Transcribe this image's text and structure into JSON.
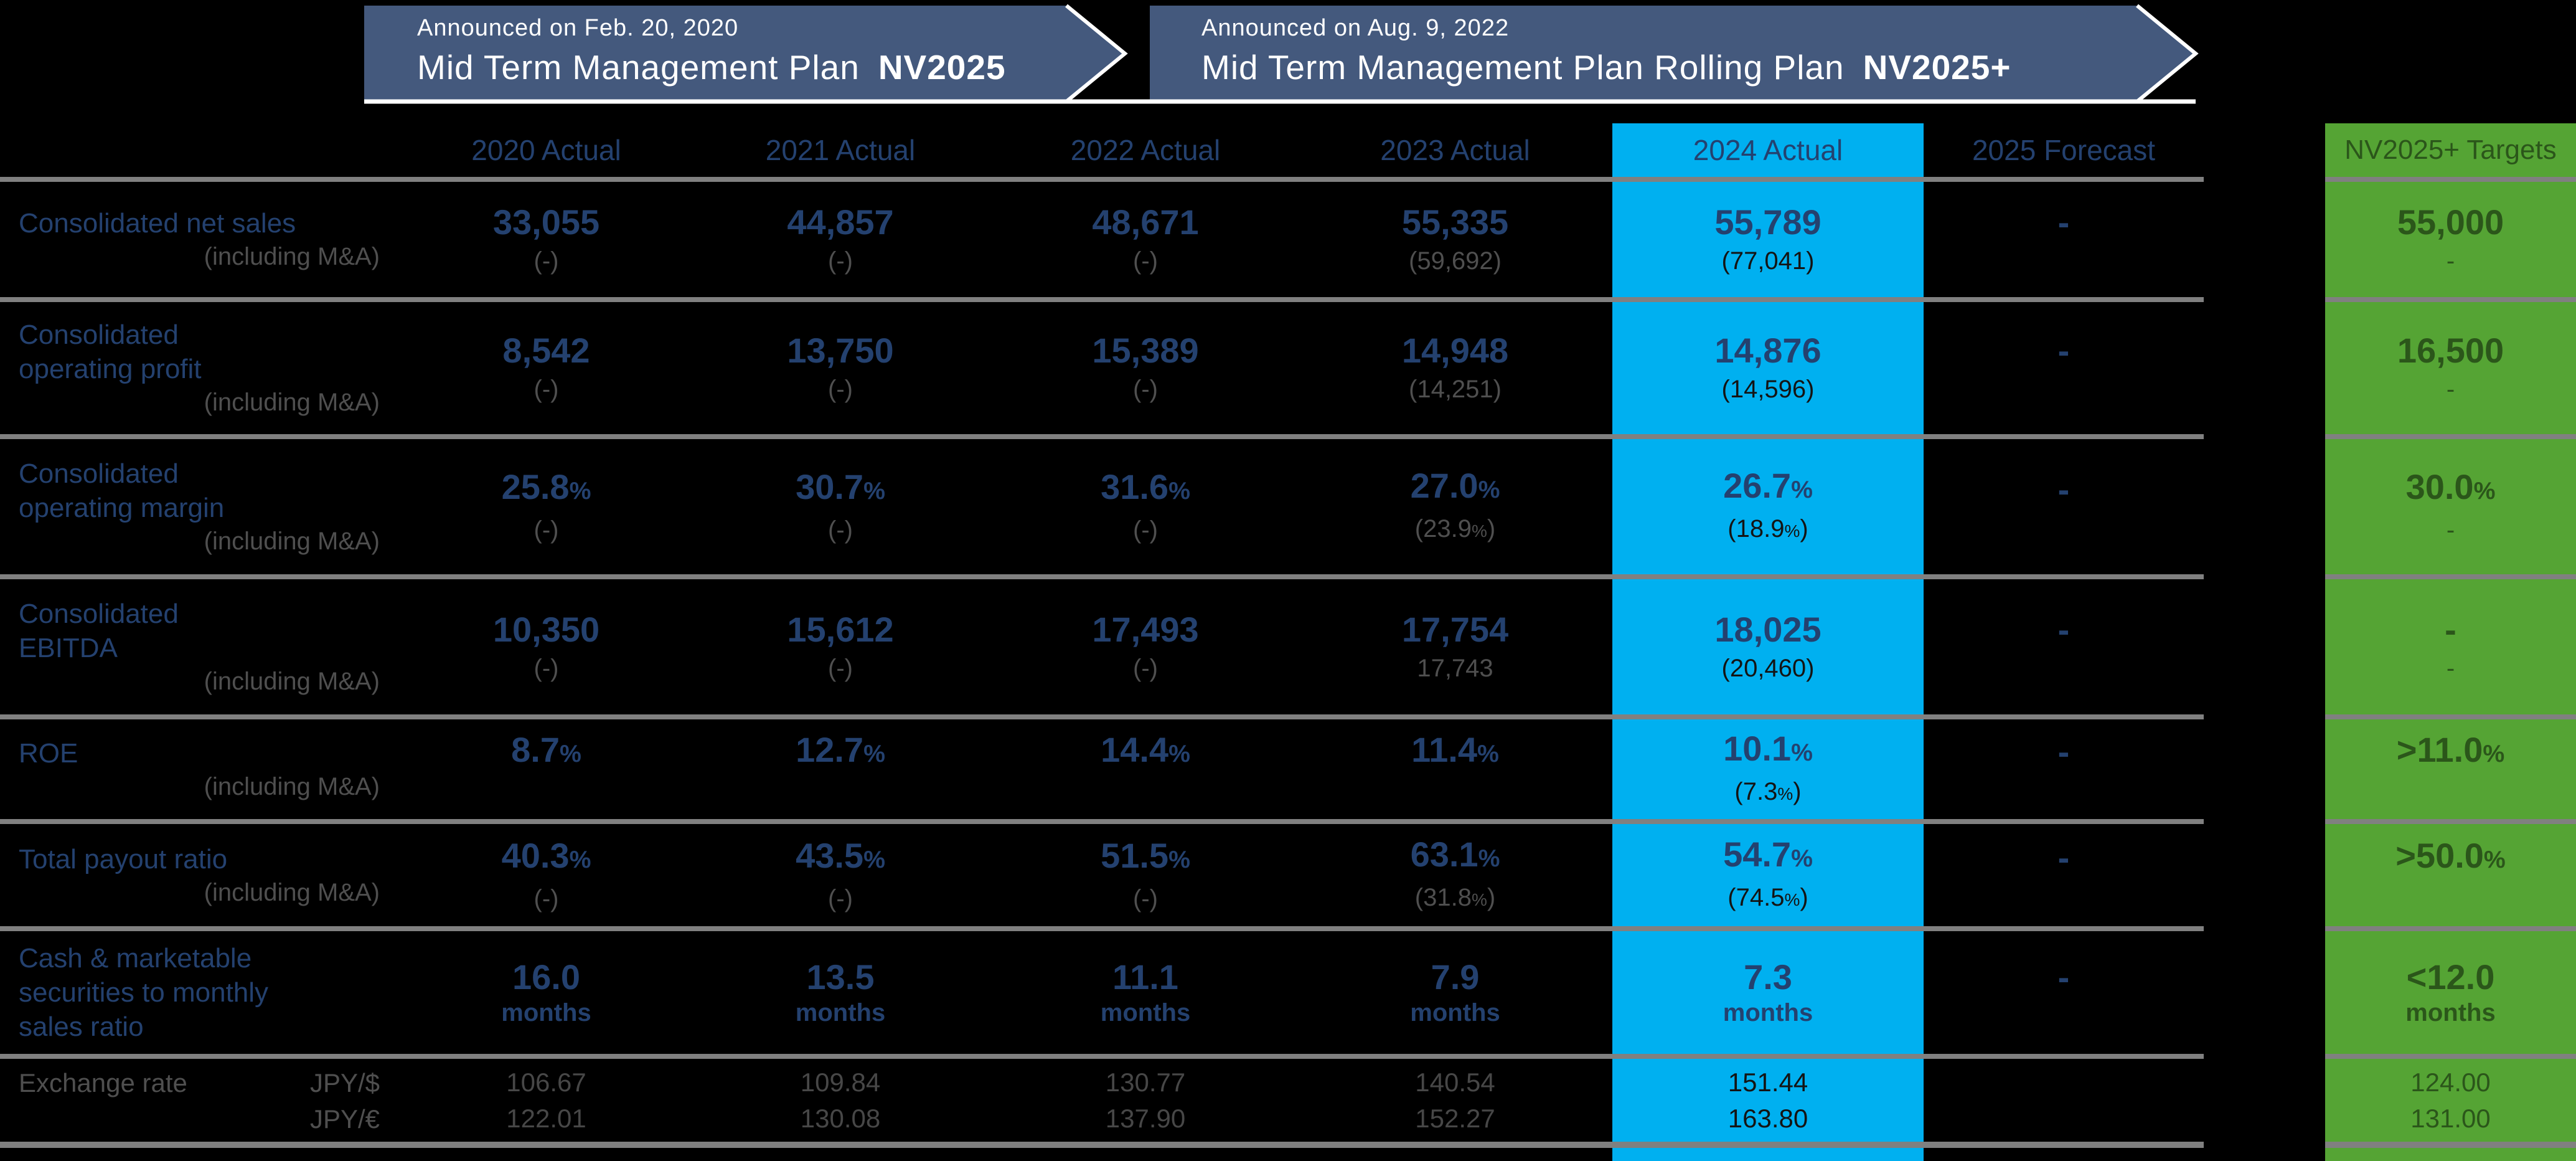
{
  "colors": {
    "background": "#000000",
    "banner_blue": "#44597D",
    "banner_text": "#FFFFFF",
    "navy_text": "#24416F",
    "gray_text": "#4F4F4F",
    "highlight_cyan": "#00B0F0",
    "target_green": "#55A434",
    "target_text_green": "#2B561A",
    "separator_gray": "#808080"
  },
  "banner": {
    "plan1": {
      "announced": "Announced on Feb. 20, 2020",
      "title": "Mid Term Management Plan",
      "code": "NV2025"
    },
    "plan2": {
      "announced": "Announced on Aug. 9, 2022",
      "title": "Mid Term Management Plan Rolling Plan",
      "code": "NV2025+"
    }
  },
  "table": {
    "headers": [
      "2020 Actual",
      "2021 Actual",
      "2022 Actual",
      "2023 Actual",
      "2024 Actual",
      "2025 Forecast"
    ],
    "target_header": "NV2025+ Targets",
    "rows": [
      {
        "label": [
          "Consolidated net sales"
        ],
        "sublabel": "(including M&A)",
        "cells": [
          {
            "v": "33,055",
            "s": "(-)"
          },
          {
            "v": "44,857",
            "s": "(-)"
          },
          {
            "v": "48,671",
            "s": "(-)"
          },
          {
            "v": "55,335",
            "s": "(59,692)"
          },
          {
            "v": "55,789",
            "s": "(77,041)"
          },
          {
            "v": "-",
            "s": ""
          }
        ],
        "target": {
          "v": "55,000",
          "s": "-"
        }
      },
      {
        "label": [
          "Consolidated",
          "operating profit"
        ],
        "sublabel": "(including M&A)",
        "cells": [
          {
            "v": "8,542",
            "s": "(-)"
          },
          {
            "v": "13,750",
            "s": "(-)"
          },
          {
            "v": "15,389",
            "s": "(-)"
          },
          {
            "v": "14,948",
            "s": "(14,251)"
          },
          {
            "v": "14,876",
            "s": "(14,596)"
          },
          {
            "v": "-",
            "s": ""
          }
        ],
        "target": {
          "v": "16,500",
          "s": "-"
        }
      },
      {
        "label": [
          "Consolidated",
          "operating margin"
        ],
        "sublabel": "(including M&A)",
        "cells": [
          {
            "v": "25.8%",
            "s": "(-)"
          },
          {
            "v": "30.7%",
            "s": "(-)"
          },
          {
            "v": "31.6%",
            "s": "(-)"
          },
          {
            "v": "27.0%",
            "s": "(23.9%)"
          },
          {
            "v": "26.7%",
            "s": "(18.9%)"
          },
          {
            "v": "-",
            "s": ""
          }
        ],
        "target": {
          "v": "30.0%",
          "s": "-"
        }
      },
      {
        "label": [
          "Consolidated",
          "EBITDA"
        ],
        "sublabel": "(including M&A)",
        "cells": [
          {
            "v": "10,350",
            "s": "(-)"
          },
          {
            "v": "15,612",
            "s": "(-)"
          },
          {
            "v": "17,493",
            "s": "(-)"
          },
          {
            "v": "17,754",
            "s": "17,743"
          },
          {
            "v": "18,025",
            "s": "(20,460)"
          },
          {
            "v": "-",
            "s": ""
          }
        ],
        "target": {
          "v": "-",
          "s": "-"
        }
      },
      {
        "label": [
          "ROE"
        ],
        "sublabel": "(including M&A)",
        "cells": [
          {
            "v": "8.7%",
            "s": ""
          },
          {
            "v": "12.7%",
            "s": ""
          },
          {
            "v": "14.4%",
            "s": ""
          },
          {
            "v": "11.4%",
            "s": ""
          },
          {
            "v": "10.1%",
            "s": "(7.3%)"
          },
          {
            "v": "-",
            "s": ""
          }
        ],
        "target": {
          "v": ">11.0%",
          "s": ""
        }
      },
      {
        "label": [
          "Total payout ratio"
        ],
        "sublabel": "(including M&A)",
        "cells": [
          {
            "v": "40.3%",
            "s": "(-)"
          },
          {
            "v": "43.5%",
            "s": "(-)"
          },
          {
            "v": "51.5%",
            "s": "(-)"
          },
          {
            "v": "63.1%",
            "s": "(31.8%)"
          },
          {
            "v": "54.7%",
            "s": "(74.5%)"
          },
          {
            "v": "-",
            "s": ""
          }
        ],
        "target": {
          "v": ">50.0%",
          "s": ""
        }
      },
      {
        "label": [
          "Cash & marketable",
          "securities to monthly",
          "sales ratio"
        ],
        "sublabel": "",
        "cells": [
          {
            "v": "16.0",
            "unit": "months"
          },
          {
            "v": "13.5",
            "unit": "months"
          },
          {
            "v": "11.1",
            "unit": "months"
          },
          {
            "v": "7.9",
            "unit": "months"
          },
          {
            "v": "7.3",
            "unit": "months"
          },
          {
            "v": "-",
            "unit": ""
          }
        ],
        "target": {
          "v": "<12.0",
          "unit": "months"
        }
      }
    ],
    "exchange": {
      "label": "Exchange rate",
      "currencies": [
        "JPY/$",
        "JPY/€"
      ],
      "cells": [
        [
          "106.67",
          "122.01"
        ],
        [
          "109.84",
          "130.08"
        ],
        [
          "130.77",
          "137.90"
        ],
        [
          "140.54",
          "152.27"
        ],
        [
          "151.44",
          "163.80"
        ],
        [
          "",
          ""
        ]
      ],
      "target": [
        "124.00",
        "131.00"
      ]
    }
  }
}
